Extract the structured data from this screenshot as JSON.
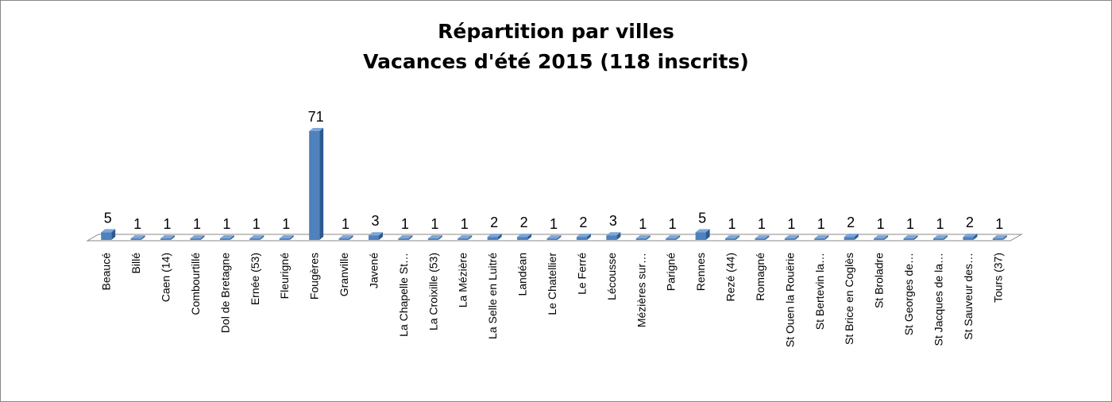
{
  "chart_data": {
    "type": "bar3d",
    "title": "Répartition par villes",
    "subtitle": "Vacances d'été 2015 (118 inscrits)",
    "color": "#4f81bd",
    "categories": [
      "Beaucé",
      "Billé",
      "Caen (14)",
      "Combourtillé",
      "Dol de Bretagne",
      "Ernée (53)",
      "Fleurigné",
      "Fougères",
      "Granville",
      "Javené",
      "La Chapelle St…",
      "La Croixille (53)",
      "La Mézière",
      "La Selle en Luitré",
      "Landéan",
      "Le Chatellier",
      "Le Ferré",
      "Lécousse",
      "Mézières sur…",
      "Parigné",
      "Rennes",
      "Rezé (44)",
      "Romagné",
      "St Ouen la Rouërie",
      "St Bertevin la…",
      "St Brice en Coglès",
      "St Broladre",
      "St Georges de…",
      "St Jacques de la…",
      "St Sauveur des…",
      "Tours (37)"
    ],
    "values": [
      5,
      1,
      1,
      1,
      1,
      1,
      1,
      71,
      1,
      3,
      1,
      1,
      1,
      2,
      2,
      1,
      2,
      3,
      1,
      1,
      5,
      1,
      1,
      1,
      1,
      2,
      1,
      1,
      1,
      2,
      1
    ]
  }
}
